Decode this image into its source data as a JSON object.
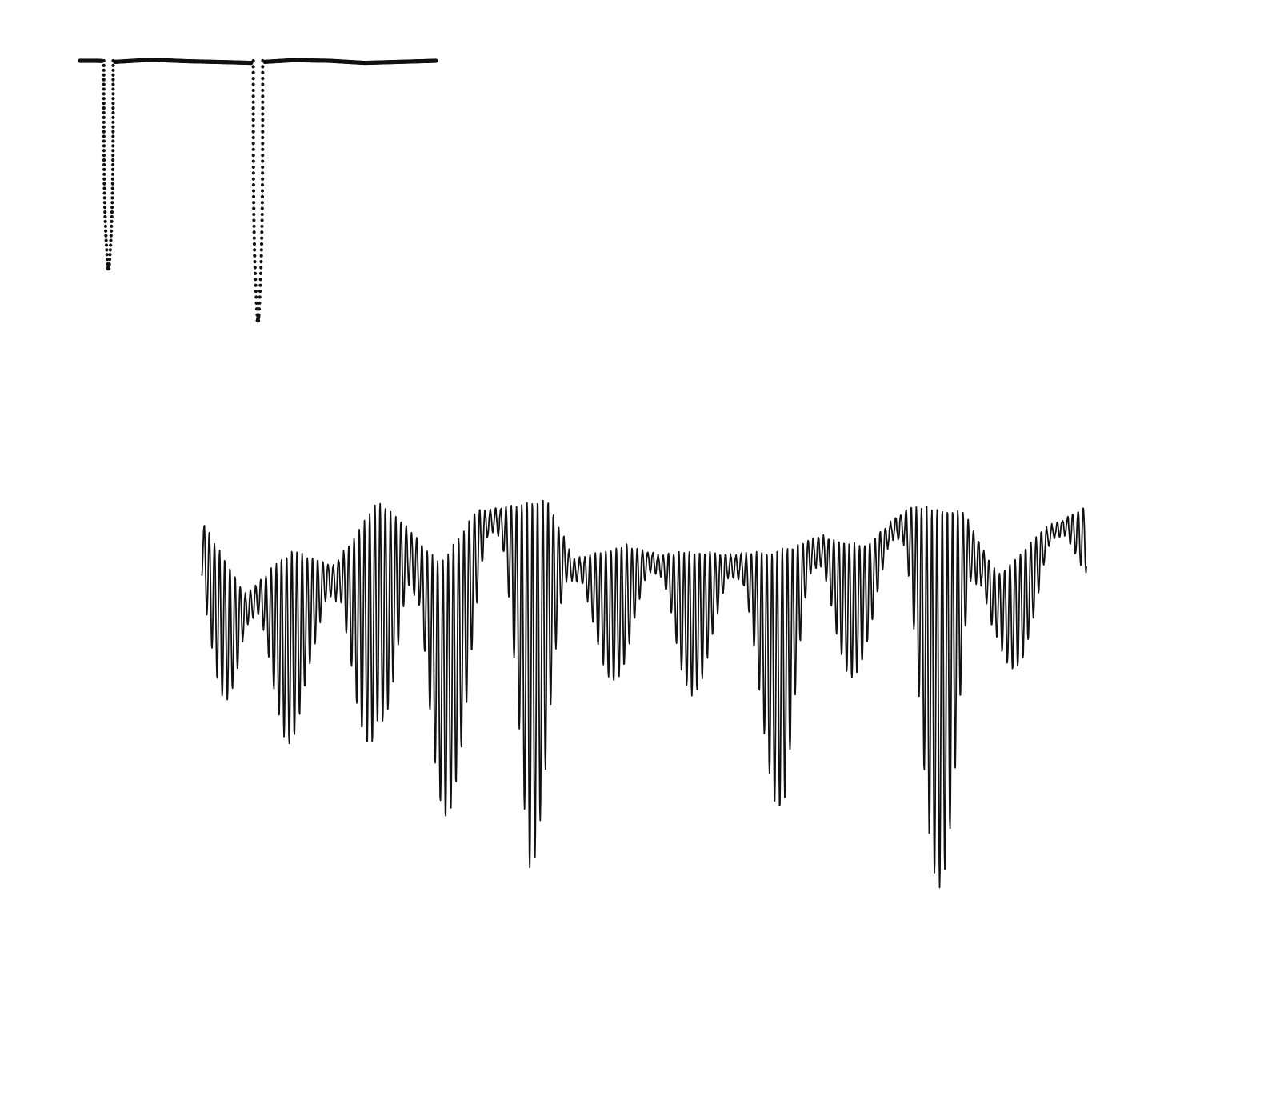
{
  "chart_data": [
    {
      "type": "scatter",
      "panel": "light-curve-dots",
      "title": "",
      "xlabel": "",
      "ylabel": "",
      "axes_visible": false,
      "grid": false,
      "legend": "none",
      "marker_color": "#111111",
      "x_range": [
        0.0,
        1.0
      ],
      "y_range": [
        0.0,
        1.0
      ],
      "baseline_level": 1.0,
      "eclipses": [
        {
          "center": 0.08,
          "width": 0.035,
          "depth_min": 0.0
        },
        {
          "center": 0.5,
          "width": 0.035,
          "depth_min": -0.25
        }
      ],
      "baseline_profile": {
        "x": [
          0.0,
          0.05,
          0.1,
          0.2,
          0.3,
          0.42,
          0.48,
          0.5,
          0.52,
          0.6,
          0.7,
          0.8,
          0.9,
          1.0
        ],
        "y": [
          1.0,
          1.0,
          0.995,
          1.005,
          0.998,
          0.993,
          0.99,
          0.985,
          0.995,
          1.003,
          1.0,
          0.99,
          0.995,
          1.0
        ]
      }
    },
    {
      "type": "line",
      "panel": "spectrum-trace",
      "title": "",
      "xlabel": "",
      "ylabel": "",
      "axes_visible": false,
      "grid": false,
      "legend": "none",
      "line_color": "#111111",
      "x_range": [
        0,
        1
      ],
      "y_range": [
        0,
        1
      ],
      "envelope_upper": {
        "x": [
          0.0,
          0.05,
          0.1,
          0.15,
          0.2,
          0.23,
          0.27,
          0.31,
          0.35,
          0.39,
          0.42,
          0.48,
          0.52,
          0.56,
          0.6,
          0.65,
          0.7,
          0.75,
          0.8,
          0.86,
          0.9,
          0.95,
          1.0
        ],
        "y": [
          0.93,
          0.78,
          0.87,
          0.84,
          0.97,
          0.92,
          0.84,
          0.95,
          0.96,
          0.98,
          0.85,
          0.88,
          0.86,
          0.87,
          0.86,
          0.87,
          0.9,
          0.88,
          0.96,
          0.95,
          0.82,
          0.91,
          0.96
        ]
      },
      "envelope_lower": {
        "x": [
          0.0,
          0.04,
          0.08,
          0.12,
          0.16,
          0.2,
          0.25,
          0.29,
          0.33,
          0.37,
          0.42,
          0.46,
          0.5,
          0.54,
          0.58,
          0.62,
          0.66,
          0.7,
          0.74,
          0.78,
          0.82,
          0.86,
          0.9,
          0.94,
          1.0
        ],
        "y": [
          0.8,
          0.35,
          0.4,
          0.55,
          0.3,
          0.52,
          0.0,
          0.42,
          0.65,
          0.2,
          0.55,
          0.6,
          0.62,
          0.55,
          0.62,
          0.5,
          0.3,
          0.5,
          0.62,
          0.7,
          0.25,
          0.05,
          0.6,
          0.66,
          0.8
        ]
      }
    }
  ]
}
